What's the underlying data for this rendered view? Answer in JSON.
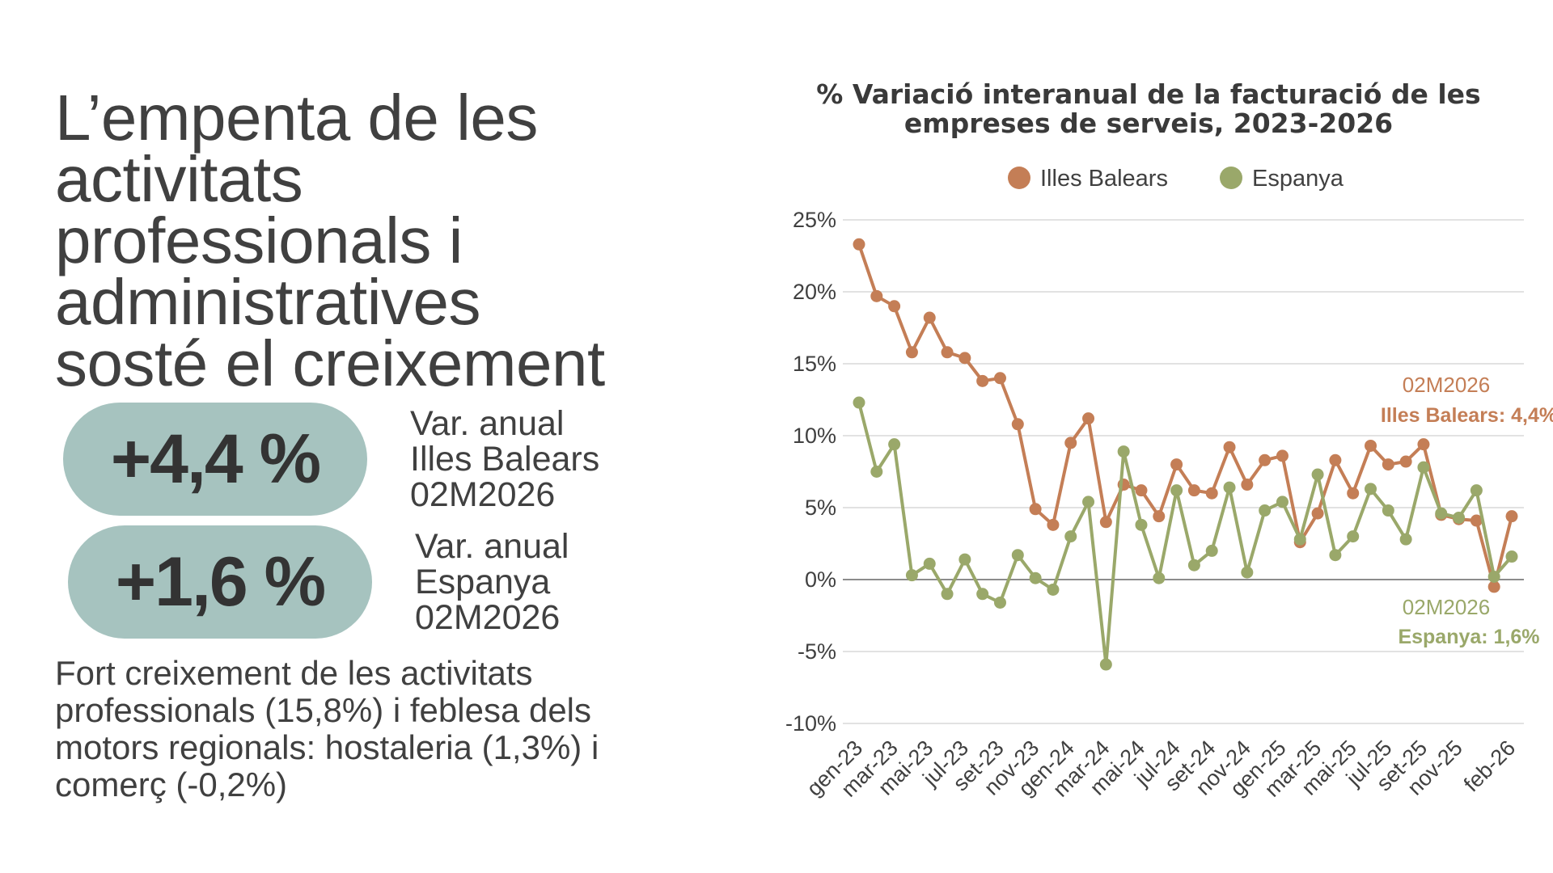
{
  "headline": [
    "L’empenta de les",
    "activitats",
    "professionals i",
    "administratives",
    "sosté el creixement"
  ],
  "kpis": [
    {
      "value": "+4,4 %",
      "lines": [
        "Var. anual",
        "Illes Balears",
        "02M2026"
      ]
    },
    {
      "value": "+1,6 %",
      "lines": [
        "Var. anual",
        "Espanya",
        "02M2026"
      ]
    }
  ],
  "subtext": [
    "Fort creixement de les activitats",
    "professionals (15,8%) i feblesa dels",
    "motors regionals: hostaleria (1,3%) i",
    "comerç (-0,2%)"
  ],
  "colors": {
    "balears": "#c47e56",
    "espanya": "#9aa86a",
    "pill": "#a6c3bf",
    "grid": "#d9d9d9",
    "zero": "#8c8c8c"
  },
  "chart_data": {
    "type": "line",
    "title": [
      "% Variació interanual de la facturació de les",
      "empreses de serveis, 2023-2026"
    ],
    "xlabel": "",
    "ylabel": "",
    "ylim": [
      -10,
      25
    ],
    "yticks": [
      "-10%",
      "-5%",
      "0%",
      "5%",
      "10%",
      "15%",
      "20%",
      "25%"
    ],
    "grid": true,
    "legend_position": "top",
    "x": [
      "gen-23",
      "feb-23",
      "mar-23",
      "abr-23",
      "mai-23",
      "jun-23",
      "jul-23",
      "ago-23",
      "set-23",
      "oct-23",
      "nov-23",
      "des-23",
      "gen-24",
      "feb-24",
      "mar-24",
      "abr-24",
      "mai-24",
      "jun-24",
      "jul-24",
      "ago-24",
      "set-24",
      "oct-24",
      "nov-24",
      "des-24",
      "gen-25",
      "feb-25",
      "mar-25",
      "abr-25",
      "mai-25",
      "jun-25",
      "jul-25",
      "ago-25",
      "set-25",
      "oct-25",
      "nov-25",
      "des-25",
      "gen-26",
      "feb-26"
    ],
    "xtick_labels": [
      "gen-23",
      "mar-23",
      "mai-23",
      "jul-23",
      "set-23",
      "nov-23",
      "gen-24",
      "mar-24",
      "mai-24",
      "jul-24",
      "set-24",
      "nov-24",
      "gen-25",
      "mar-25",
      "mai-25",
      "jul-25",
      "set-25",
      "nov-25",
      "feb-26"
    ],
    "xtick_index": [
      0,
      2,
      4,
      6,
      8,
      10,
      12,
      14,
      16,
      18,
      20,
      22,
      24,
      26,
      28,
      30,
      32,
      34,
      37
    ],
    "series": [
      {
        "name": "Illes Balears",
        "color": "#c47e56",
        "values": [
          23.3,
          19.7,
          19.0,
          15.8,
          18.2,
          15.8,
          15.4,
          13.8,
          14.0,
          10.8,
          4.9,
          3.8,
          9.5,
          11.2,
          4.0,
          6.6,
          6.2,
          4.4,
          8.0,
          6.2,
          6.0,
          9.2,
          6.6,
          8.3,
          8.6,
          2.6,
          4.6,
          8.3,
          6.0,
          9.3,
          8.0,
          8.2,
          9.4,
          4.5,
          4.2,
          4.1,
          -0.5,
          4.4
        ]
      },
      {
        "name": "Espanya",
        "color": "#9aa86a",
        "values": [
          12.3,
          7.5,
          9.4,
          0.3,
          1.1,
          -1.0,
          1.4,
          -1.0,
          -1.6,
          1.7,
          0.1,
          -0.7,
          3.0,
          5.4,
          -5.9,
          8.9,
          3.8,
          0.1,
          6.2,
          1.0,
          2.0,
          6.4,
          0.5,
          4.8,
          5.4,
          2.8,
          7.3,
          1.7,
          3.0,
          6.3,
          4.8,
          2.8,
          7.8,
          4.6,
          4.3,
          6.2,
          0.2,
          1.6
        ]
      }
    ],
    "annotations": [
      {
        "series": 0,
        "date": "02M2026",
        "label": "Illes Balears: 4,4%"
      },
      {
        "series": 1,
        "date": "02M2026",
        "label": "Espanya: 1,6%"
      }
    ]
  }
}
